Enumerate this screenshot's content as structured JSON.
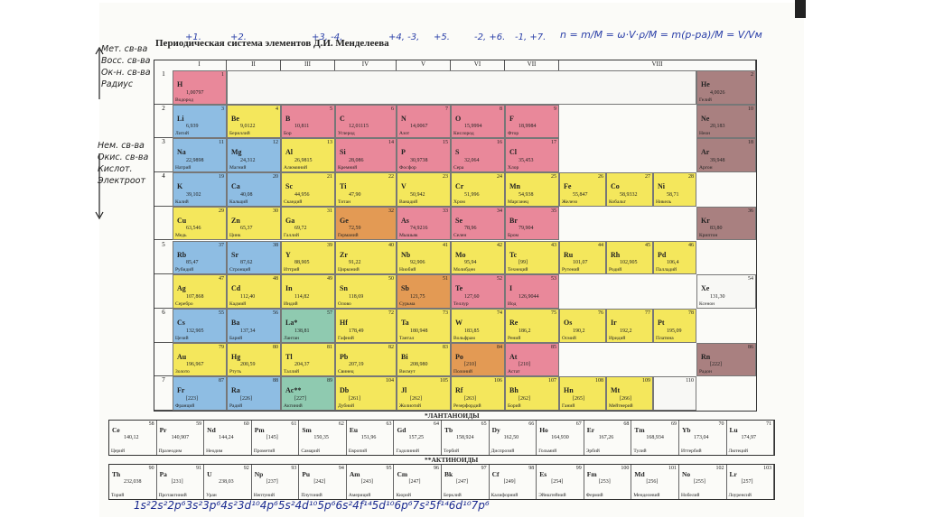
{
  "header": {
    "title": "Периодическая система элементов Д.И. Менделеева",
    "oxidation_states": [
      "+1.",
      "+2.",
      "+3, -4,",
      "+4, -3,",
      "+5.",
      "-2, +6.",
      "-1, +7."
    ],
    "formula": "n = m/M = ω·V·ρ/M = m(p-pa)/M = V/Vм"
  },
  "annotations": {
    "top_left": [
      "Мет. св-ва",
      "Восс. св-ва",
      "Ок-н. св-ва",
      "Радиус"
    ],
    "mid_left": [
      "Нем. св-ва",
      "Окис. св-ва",
      "Кислот.",
      "Электроот"
    ],
    "bottom_config": "1s²2s²2p⁶3s²3p⁶4s²3d¹⁰4p⁶5s²4d¹⁰5p⁶6s²4f¹⁴5d¹⁰6p⁶7s²5f¹⁴6d¹⁰7p⁶"
  },
  "groups": [
    "I",
    "II",
    "III",
    "IV",
    "V",
    "VI",
    "VII",
    "VIII"
  ],
  "periods": [
    "1",
    "2",
    "3",
    "4",
    "",
    "5",
    "",
    "6",
    "",
    "7"
  ],
  "elements": [
    {
      "sym": "H",
      "num": "1",
      "mass": "1,00797",
      "name": "Водород",
      "c": "p"
    },
    {
      "sym": "He",
      "num": "2",
      "mass": "4,0026",
      "name": "Гелий",
      "c": "r"
    },
    {
      "sym": "Li",
      "num": "3",
      "mass": "6,939",
      "name": "Литий",
      "c": "b"
    },
    {
      "sym": "Be",
      "num": "4",
      "mass": "9,0122",
      "name": "Бериллий",
      "c": "y"
    },
    {
      "sym": "B",
      "num": "5",
      "mass": "10,811",
      "name": "Бор",
      "c": "p"
    },
    {
      "sym": "C",
      "num": "6",
      "mass": "12,01115",
      "name": "Углерод",
      "c": "p"
    },
    {
      "sym": "N",
      "num": "7",
      "mass": "14,0067",
      "name": "Азот",
      "c": "p"
    },
    {
      "sym": "O",
      "num": "8",
      "mass": "15,9994",
      "name": "Кислород",
      "c": "p"
    },
    {
      "sym": "F",
      "num": "9",
      "mass": "18,9984",
      "name": "Фтор",
      "c": "p"
    },
    {
      "sym": "Ne",
      "num": "10",
      "mass": "20,183",
      "name": "Неон",
      "c": "r"
    },
    {
      "sym": "Na",
      "num": "11",
      "mass": "22,9898",
      "name": "Натрий",
      "c": "b"
    },
    {
      "sym": "Mg",
      "num": "12",
      "mass": "24,312",
      "name": "Магний",
      "c": "b"
    },
    {
      "sym": "Al",
      "num": "13",
      "mass": "26,9815",
      "name": "Алюминий",
      "c": "y"
    },
    {
      "sym": "Si",
      "num": "14",
      "mass": "28,086",
      "name": "Кремний",
      "c": "p"
    },
    {
      "sym": "P",
      "num": "15",
      "mass": "30,9738",
      "name": "Фосфор",
      "c": "p"
    },
    {
      "sym": "S",
      "num": "16",
      "mass": "32,064",
      "name": "Сера",
      "c": "p"
    },
    {
      "sym": "Cl",
      "num": "17",
      "mass": "35,453",
      "name": "Хлор",
      "c": "p"
    },
    {
      "sym": "Ar",
      "num": "18",
      "mass": "39,948",
      "name": "Аргон",
      "c": "r"
    },
    {
      "sym": "K",
      "num": "19",
      "mass": "39,102",
      "name": "Калий",
      "c": "b"
    },
    {
      "sym": "Ca",
      "num": "20",
      "mass": "40,08",
      "name": "Кальций",
      "c": "b"
    },
    {
      "sym": "Sc",
      "num": "21",
      "mass": "44,956",
      "name": "Скандий",
      "c": "y"
    },
    {
      "sym": "Ti",
      "num": "22",
      "mass": "47,90",
      "name": "Титан",
      "c": "y"
    },
    {
      "sym": "V",
      "num": "23",
      "mass": "50,942",
      "name": "Ванадий",
      "c": "y"
    },
    {
      "sym": "Cr",
      "num": "24",
      "mass": "51,996",
      "name": "Хром",
      "c": "y"
    },
    {
      "sym": "Mn",
      "num": "25",
      "mass": "54,938",
      "name": "Марганец",
      "c": "y"
    },
    {
      "sym": "Fe",
      "num": "26",
      "mass": "55,847",
      "name": "Железо",
      "c": "y"
    },
    {
      "sym": "Co",
      "num": "27",
      "mass": "58,9332",
      "name": "Кобальт",
      "c": "y"
    },
    {
      "sym": "Ni",
      "num": "28",
      "mass": "58,71",
      "name": "Никель",
      "c": "y"
    },
    {
      "sym": "Cu",
      "num": "29",
      "mass": "63,546",
      "name": "Медь",
      "c": "y"
    },
    {
      "sym": "Zn",
      "num": "30",
      "mass": "65,37",
      "name": "Цинк",
      "c": "y"
    },
    {
      "sym": "Ga",
      "num": "31",
      "mass": "69,72",
      "name": "Галлий",
      "c": "y"
    },
    {
      "sym": "Ge",
      "num": "32",
      "mass": "72,59",
      "name": "Германий",
      "c": "o"
    },
    {
      "sym": "As",
      "num": "33",
      "mass": "74,9216",
      "name": "Мышьяк",
      "c": "p"
    },
    {
      "sym": "Se",
      "num": "34",
      "mass": "78,96",
      "name": "Селен",
      "c": "p"
    },
    {
      "sym": "Br",
      "num": "35",
      "mass": "79,904",
      "name": "Бром",
      "c": "p"
    },
    {
      "sym": "Kr",
      "num": "36",
      "mass": "83,80",
      "name": "Криптон",
      "c": "r"
    },
    {
      "sym": "Rb",
      "num": "37",
      "mass": "85,47",
      "name": "Рубидий",
      "c": "b"
    },
    {
      "sym": "Sr",
      "num": "38",
      "mass": "87,62",
      "name": "Стронций",
      "c": "b"
    },
    {
      "sym": "Y",
      "num": "39",
      "mass": "88,905",
      "name": "Иттрий",
      "c": "y"
    },
    {
      "sym": "Zr",
      "num": "40",
      "mass": "91,22",
      "name": "Цирконий",
      "c": "y"
    },
    {
      "sym": "Nb",
      "num": "41",
      "mass": "92,906",
      "name": "Ниобий",
      "c": "y"
    },
    {
      "sym": "Mo",
      "num": "42",
      "mass": "95,94",
      "name": "Молибден",
      "c": "y"
    },
    {
      "sym": "Tc",
      "num": "43",
      "mass": "[99]",
      "name": "Технеций",
      "c": "y"
    },
    {
      "sym": "Ru",
      "num": "44",
      "mass": "101,07",
      "name": "Рутений",
      "c": "y"
    },
    {
      "sym": "Rh",
      "num": "45",
      "mass": "102,905",
      "name": "Родий",
      "c": "y"
    },
    {
      "sym": "Pd",
      "num": "46",
      "mass": "106,4",
      "name": "Палладий",
      "c": "y"
    },
    {
      "sym": "Ag",
      "num": "47",
      "mass": "107,868",
      "name": "Серебро",
      "c": "y"
    },
    {
      "sym": "Cd",
      "num": "48",
      "mass": "112,40",
      "name": "Кадмий",
      "c": "y"
    },
    {
      "sym": "In",
      "num": "49",
      "mass": "114,82",
      "name": "Индий",
      "c": "y"
    },
    {
      "sym": "Sn",
      "num": "50",
      "mass": "118,69",
      "name": "Олово",
      "c": "y"
    },
    {
      "sym": "Sb",
      "num": "51",
      "mass": "121,75",
      "name": "Сурьма",
      "c": "o"
    },
    {
      "sym": "Te",
      "num": "52",
      "mass": "127,60",
      "name": "Теллур",
      "c": "p"
    },
    {
      "sym": "I",
      "num": "53",
      "mass": "126,9044",
      "name": "Иод",
      "c": "p"
    },
    {
      "sym": "Xe",
      "num": "54",
      "mass": "131,30",
      "name": "Ксенон",
      "c": "w"
    },
    {
      "sym": "Cs",
      "num": "55",
      "mass": "132,905",
      "name": "Цезий",
      "c": "b"
    },
    {
      "sym": "Ba",
      "num": "56",
      "mass": "137,34",
      "name": "Барий",
      "c": "b"
    },
    {
      "sym": "La*",
      "num": "57",
      "mass": "138,81",
      "name": "Лантан",
      "c": "g"
    },
    {
      "sym": "Hf",
      "num": "72",
      "mass": "178,49",
      "name": "Гафний",
      "c": "y"
    },
    {
      "sym": "Ta",
      "num": "73",
      "mass": "180,948",
      "name": "Тантал",
      "c": "y"
    },
    {
      "sym": "W",
      "num": "74",
      "mass": "183,85",
      "name": "Вольфрам",
      "c": "y"
    },
    {
      "sym": "Re",
      "num": "75",
      "mass": "186,2",
      "name": "Рений",
      "c": "y"
    },
    {
      "sym": "Os",
      "num": "76",
      "mass": "190,2",
      "name": "Осмий",
      "c": "y"
    },
    {
      "sym": "Ir",
      "num": "77",
      "mass": "192,2",
      "name": "Иридий",
      "c": "y"
    },
    {
      "sym": "Pt",
      "num": "78",
      "mass": "195,09",
      "name": "Платина",
      "c": "y"
    },
    {
      "sym": "Au",
      "num": "79",
      "mass": "196,967",
      "name": "Золото",
      "c": "y"
    },
    {
      "sym": "Hg",
      "num": "80",
      "mass": "200,59",
      "name": "Ртуть",
      "c": "y"
    },
    {
      "sym": "Tl",
      "num": "81",
      "mass": "204,37",
      "name": "Таллий",
      "c": "y"
    },
    {
      "sym": "Pb",
      "num": "82",
      "mass": "207,19",
      "name": "Свинец",
      "c": "y"
    },
    {
      "sym": "Bi",
      "num": "83",
      "mass": "208,980",
      "name": "Висмут",
      "c": "y"
    },
    {
      "sym": "Po",
      "num": "84",
      "mass": "[210]",
      "name": "Полоний",
      "c": "o"
    },
    {
      "sym": "At",
      "num": "85",
      "mass": "[210]",
      "name": "Астат",
      "c": "p"
    },
    {
      "sym": "Rn",
      "num": "86",
      "mass": "[222]",
      "name": "Радон",
      "c": "r"
    },
    {
      "sym": "Fr",
      "num": "87",
      "mass": "[223]",
      "name": "Франций",
      "c": "b"
    },
    {
      "sym": "Ra",
      "num": "88",
      "mass": "[226]",
      "name": "Радий",
      "c": "b"
    },
    {
      "sym": "Ac**",
      "num": "89",
      "mass": "[227]",
      "name": "Актиний",
      "c": "g"
    },
    {
      "sym": "Db",
      "num": "104",
      "mass": "[261]",
      "name": "Дубний",
      "c": "y"
    },
    {
      "sym": "Jl",
      "num": "105",
      "mass": "[262]",
      "name": "Жолиотий",
      "c": "y"
    },
    {
      "sym": "Rf",
      "num": "106",
      "mass": "[263]",
      "name": "Резерфордий",
      "c": "y"
    },
    {
      "sym": "Bh",
      "num": "107",
      "mass": "[262]",
      "name": "Борий",
      "c": "y"
    },
    {
      "sym": "Hn",
      "num": "108",
      "mass": "[265]",
      "name": "Ганий",
      "c": "y"
    },
    {
      "sym": "Mt",
      "num": "109",
      "mass": "[266]",
      "name": "Мейтнерий",
      "c": "y"
    },
    {
      "sym": "",
      "num": "110",
      "mass": "",
      "name": "",
      "c": "w"
    }
  ],
  "lanthanides_title": "*ЛАНТАНОИДЫ",
  "lanthanides": [
    {
      "sym": "Ce",
      "num": "58",
      "mass": "140,12",
      "name": "Церий"
    },
    {
      "sym": "Pr",
      "num": "59",
      "mass": "140,907",
      "name": "Празеодим"
    },
    {
      "sym": "Nd",
      "num": "60",
      "mass": "144,24",
      "name": "Неодим"
    },
    {
      "sym": "Pm",
      "num": "61",
      "mass": "[145]",
      "name": "Прометий"
    },
    {
      "sym": "Sm",
      "num": "62",
      "mass": "150,35",
      "name": "Самарий"
    },
    {
      "sym": "Eu",
      "num": "63",
      "mass": "151,96",
      "name": "Европий"
    },
    {
      "sym": "Gd",
      "num": "64",
      "mass": "157,25",
      "name": "Гадолиний"
    },
    {
      "sym": "Tb",
      "num": "65",
      "mass": "158,924",
      "name": "Тербий"
    },
    {
      "sym": "Dy",
      "num": "66",
      "mass": "162,50",
      "name": "Диспрозий"
    },
    {
      "sym": "Ho",
      "num": "67",
      "mass": "164,930",
      "name": "Гольмий"
    },
    {
      "sym": "Er",
      "num": "68",
      "mass": "167,26",
      "name": "Эрбий"
    },
    {
      "sym": "Tm",
      "num": "69",
      "mass": "168,934",
      "name": "Тулий"
    },
    {
      "sym": "Yb",
      "num": "70",
      "mass": "173,04",
      "name": "Иттербий"
    },
    {
      "sym": "Lu",
      "num": "71",
      "mass": "174,97",
      "name": "Лютеций"
    }
  ],
  "actinides_title": "**АКТИНОИДЫ",
  "actinides": [
    {
      "sym": "Th",
      "num": "90",
      "mass": "232,038",
      "name": "Торий"
    },
    {
      "sym": "Pa",
      "num": "91",
      "mass": "[231]",
      "name": "Протактиний"
    },
    {
      "sym": "U",
      "num": "92",
      "mass": "238,03",
      "name": "Уран"
    },
    {
      "sym": "Np",
      "num": "93",
      "mass": "[237]",
      "name": "Нептуний"
    },
    {
      "sym": "Pu",
      "num": "94",
      "mass": "[242]",
      "name": "Плутоний"
    },
    {
      "sym": "Am",
      "num": "95",
      "mass": "[243]",
      "name": "Америций"
    },
    {
      "sym": "Cm",
      "num": "96",
      "mass": "[247]",
      "name": "Кюрий"
    },
    {
      "sym": "Bk",
      "num": "97",
      "mass": "[247]",
      "name": "Берклий"
    },
    {
      "sym": "Cf",
      "num": "98",
      "mass": "[249]",
      "name": "Калифорний"
    },
    {
      "sym": "Es",
      "num": "99",
      "mass": "[254]",
      "name": "Эйнштейний"
    },
    {
      "sym": "Fm",
      "num": "100",
      "mass": "[253]",
      "name": "Фермий"
    },
    {
      "sym": "Md",
      "num": "101",
      "mass": "[256]",
      "name": "Менделевий"
    },
    {
      "sym": "No",
      "num": "102",
      "mass": "[255]",
      "name": "Нобелий"
    },
    {
      "sym": "Lr",
      "num": "103",
      "mass": "[257]",
      "name": "Лоуренсий"
    }
  ]
}
